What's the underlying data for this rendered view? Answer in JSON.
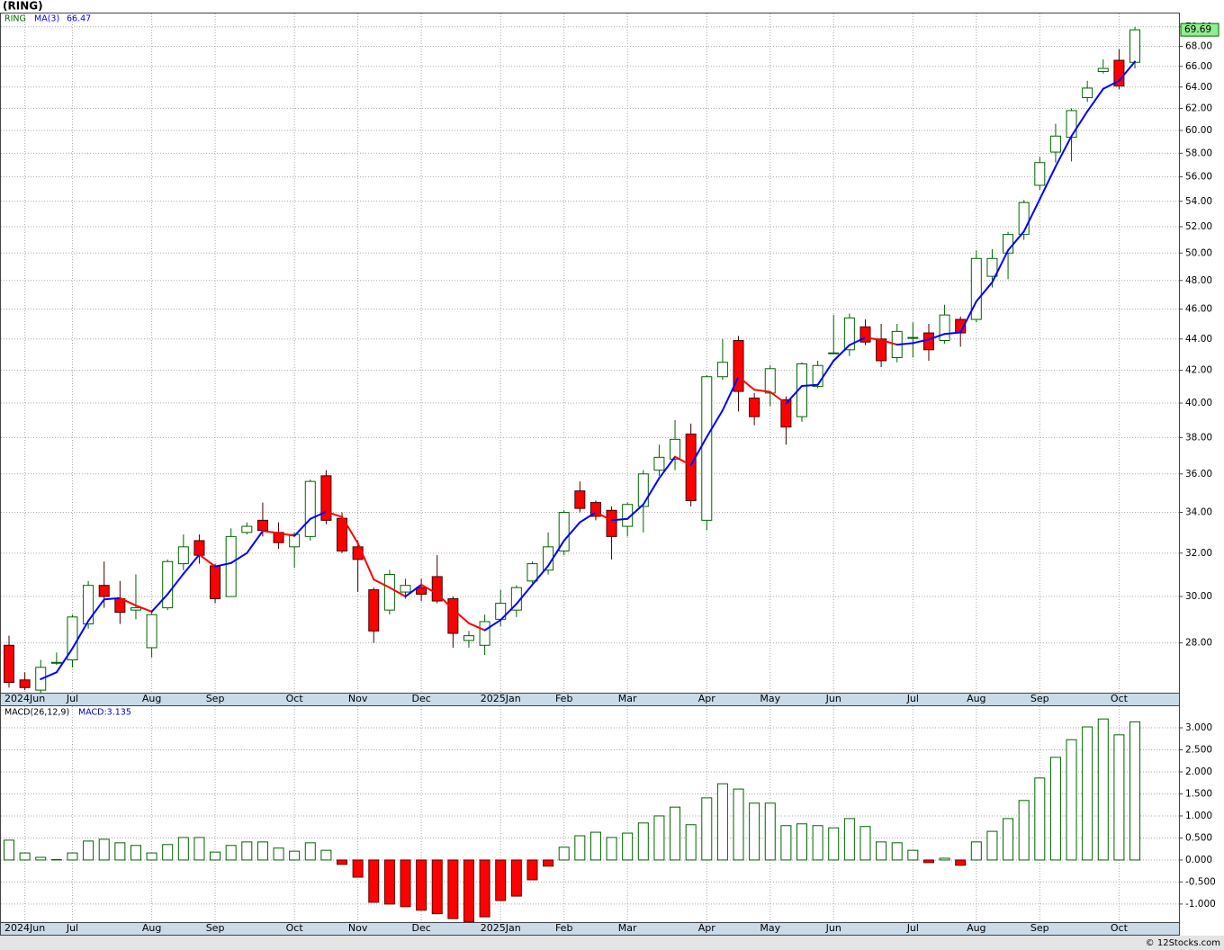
{
  "title": "(RING)",
  "watermark": "© 12Stocks.com",
  "chart_data": [
    {
      "type": "candlestick",
      "symbol": "RING",
      "categories": [
        null,
        "2024Jun",
        null,
        null,
        "Jul",
        null,
        null,
        null,
        null,
        "Aug",
        null,
        null,
        null,
        "Sep",
        null,
        null,
        null,
        null,
        "Oct",
        null,
        null,
        null,
        "Nov",
        null,
        null,
        null,
        "Dec",
        null,
        null,
        null,
        null,
        "2025Jan",
        null,
        null,
        null,
        "Feb",
        null,
        null,
        null,
        "Mar",
        null,
        null,
        null,
        null,
        "Apr",
        null,
        null,
        null,
        "May",
        null,
        null,
        null,
        "Jun",
        null,
        null,
        null,
        null,
        "Jul",
        null,
        null,
        null,
        "Aug",
        null,
        null,
        null,
        "Sep",
        null,
        null,
        null,
        null,
        "Oct",
        null
      ],
      "open": [
        27.9,
        26.5,
        26.1,
        27.2,
        27.3,
        28.8,
        30.5,
        29.9,
        29.4,
        27.8,
        29.5,
        31.5,
        32.6,
        31.4,
        30.0,
        33.0,
        33.6,
        33.0,
        32.3,
        32.8,
        35.9,
        33.7,
        32.3,
        30.3,
        29.4,
        30.2,
        30.4,
        30.9,
        29.9,
        28.1,
        27.9,
        29.0,
        29.4,
        30.7,
        31.2,
        32.1,
        35.1,
        34.5,
        34.1,
        33.3,
        34.3,
        36.2,
        36.8,
        38.2,
        33.6,
        41.6,
        43.9,
        40.3,
        40.6,
        40.2,
        39.2,
        41.0,
        43.1,
        43.3,
        44.8,
        44.0,
        42.8,
        44.1,
        44.4,
        43.9,
        45.3,
        45.3,
        48.3,
        50.0,
        51.4,
        55.3,
        58.1,
        59.4,
        63.0,
        65.5,
        66.6,
        66.4
      ],
      "high": [
        28.3,
        26.8,
        27.3,
        27.6,
        29.2,
        30.7,
        31.6,
        30.7,
        31.0,
        29.4,
        31.7,
        32.9,
        32.9,
        31.5,
        33.2,
        33.5,
        34.5,
        33.5,
        33.0,
        35.7,
        36.2,
        34.0,
        32.6,
        30.4,
        31.2,
        30.8,
        30.8,
        31.9,
        30.0,
        28.5,
        29.2,
        30.3,
        30.5,
        31.6,
        33.0,
        34.1,
        35.6,
        34.6,
        34.3,
        34.5,
        36.2,
        37.6,
        39.0,
        38.8,
        41.7,
        44.0,
        44.2,
        40.6,
        42.3,
        40.4,
        42.5,
        42.6,
        45.6,
        45.7,
        45.3,
        45.0,
        45.0,
        45.1,
        45.0,
        46.3,
        45.5,
        50.2,
        50.3,
        51.6,
        54.1,
        57.7,
        60.6,
        62.0,
        64.6,
        66.7,
        67.7,
        70.0
      ],
      "low": [
        26.2,
        26.1,
        26.0,
        27.1,
        27.0,
        28.6,
        29.5,
        28.8,
        29.0,
        27.4,
        29.4,
        31.2,
        31.5,
        29.7,
        30.0,
        32.9,
        32.8,
        32.2,
        31.3,
        32.6,
        33.4,
        32.0,
        30.2,
        28.0,
        29.2,
        29.9,
        29.8,
        29.7,
        27.8,
        27.8,
        27.5,
        28.7,
        29.1,
        30.6,
        31.0,
        31.9,
        34.0,
        33.6,
        31.7,
        32.8,
        33.0,
        35.9,
        36.2,
        34.3,
        33.1,
        41.4,
        39.5,
        38.7,
        39.8,
        37.6,
        38.9,
        40.9,
        43.0,
        42.9,
        43.6,
        42.2,
        42.5,
        42.8,
        42.6,
        43.7,
        43.5,
        45.1,
        47.5,
        48.1,
        51.0,
        54.9,
        57.2,
        57.3,
        62.6,
        65.3,
        63.8,
        65.8
      ],
      "close": [
        26.4,
        26.2,
        27.0,
        27.2,
        29.1,
        30.5,
        30.0,
        29.3,
        29.5,
        29.2,
        31.6,
        32.3,
        31.9,
        29.9,
        32.8,
        33.3,
        33.1,
        32.5,
        32.9,
        35.6,
        33.6,
        32.1,
        31.7,
        28.5,
        31.0,
        30.5,
        30.1,
        29.8,
        28.4,
        28.3,
        28.9,
        29.7,
        30.4,
        31.5,
        32.3,
        34.0,
        34.2,
        33.8,
        32.8,
        34.4,
        36.0,
        36.9,
        37.9,
        34.6,
        41.6,
        42.5,
        40.7,
        39.2,
        42.1,
        38.6,
        42.4,
        42.3,
        43.1,
        45.4,
        43.8,
        42.6,
        44.5,
        44.1,
        43.3,
        45.6,
        44.4,
        49.6,
        49.6,
        51.4,
        53.9,
        57.2,
        59.5,
        61.8,
        63.9,
        65.8,
        64.1,
        69.69
      ],
      "ma": {
        "name": "MA(3)",
        "color": "#0000ff",
        "down_color": "#ff0000",
        "values": [
          null,
          null,
          26.53,
          26.8,
          27.77,
          28.93,
          29.87,
          29.93,
          29.6,
          29.33,
          30.1,
          31.03,
          31.93,
          31.37,
          31.53,
          32.0,
          33.07,
          32.97,
          32.83,
          33.67,
          34.03,
          33.77,
          32.47,
          30.77,
          30.4,
          30.0,
          30.53,
          30.13,
          29.43,
          28.83,
          28.53,
          28.97,
          29.67,
          30.53,
          31.4,
          32.6,
          33.5,
          34.0,
          33.6,
          33.67,
          34.4,
          35.77,
          36.93,
          36.47,
          38.03,
          39.57,
          41.6,
          40.8,
          40.67,
          39.97,
          41.03,
          41.1,
          42.6,
          43.6,
          44.1,
          43.93,
          43.63,
          43.73,
          43.97,
          44.33,
          44.43,
          46.53,
          47.87,
          50.2,
          51.63,
          54.17,
          56.87,
          59.5,
          61.73,
          63.83,
          64.6,
          66.47
        ]
      },
      "ylim": [
        26,
        71.4
      ],
      "log_scale": true,
      "yticks": [
        {
          "value": 28,
          "label": "28.00"
        },
        {
          "value": 30,
          "label": "30.00"
        },
        {
          "value": 32,
          "label": "32.00"
        },
        {
          "value": 34,
          "label": "34.00"
        },
        {
          "value": 36,
          "label": "36.00"
        },
        {
          "value": 38,
          "label": "38.00"
        },
        {
          "value": 40,
          "label": "40.00"
        },
        {
          "value": 42,
          "label": "42.00"
        },
        {
          "value": 44,
          "label": "44.00"
        },
        {
          "value": 46,
          "label": "46.00"
        },
        {
          "value": 48,
          "label": "48.00"
        },
        {
          "value": 50,
          "label": "50.00"
        },
        {
          "value": 52,
          "label": "52.00"
        },
        {
          "value": 54,
          "label": "54.00"
        },
        {
          "value": 56,
          "label": "56.00"
        },
        {
          "value": 58,
          "label": "58.00"
        },
        {
          "value": 60,
          "label": "60.00"
        },
        {
          "value": 62,
          "label": "62.00"
        },
        {
          "value": 64,
          "label": "64.00"
        },
        {
          "value": 66,
          "label": "66.00"
        },
        {
          "value": 68,
          "label": "68.00"
        },
        {
          "value": 70,
          "label": "70.00"
        }
      ],
      "grid": true,
      "up_fill": "#ffffff",
      "up_stroke": "#006400",
      "down_fill": "#ff0000",
      "down_stroke": "#400000",
      "symbol_color": "#006400",
      "last_price_color": "#90ee90"
    },
    {
      "type": "bar",
      "name": "MACD(26,12,9)",
      "legend_label": "MACD:3.135",
      "values": [
        0.45,
        0.16,
        0.06,
        0.01,
        0.16,
        0.43,
        0.47,
        0.39,
        0.33,
        0.16,
        0.35,
        0.51,
        0.51,
        0.18,
        0.33,
        0.41,
        0.41,
        0.27,
        0.2,
        0.39,
        0.22,
        -0.1,
        -0.39,
        -0.96,
        -1.0,
        -1.06,
        -1.14,
        -1.22,
        -1.33,
        -1.4,
        -1.29,
        -0.92,
        -0.82,
        -0.45,
        -0.14,
        0.29,
        0.55,
        0.63,
        0.51,
        0.61,
        0.84,
        1.0,
        1.2,
        0.8,
        1.41,
        1.73,
        1.61,
        1.29,
        1.29,
        0.78,
        0.82,
        0.78,
        0.73,
        0.94,
        0.76,
        0.41,
        0.39,
        0.22,
        -0.06,
        0.04,
        -0.12,
        0.41,
        0.65,
        0.94,
        1.35,
        1.86,
        2.33,
        2.73,
        3.02,
        3.2,
        2.84,
        3.135
      ],
      "ylim": [
        -1.41,
        3.49
      ],
      "yticks": [
        {
          "value": 3,
          "label": "3.000"
        },
        {
          "value": 2.5,
          "label": "2.500"
        },
        {
          "value": 2,
          "label": "2.000"
        },
        {
          "value": 1.5,
          "label": "1.500"
        },
        {
          "value": 1,
          "label": "1.000"
        },
        {
          "value": 0.5,
          "label": "0.500"
        },
        {
          "value": 0,
          "label": "0.000"
        },
        {
          "value": -0.5,
          "label": "-0.500"
        },
        {
          "value": -1,
          "label": "-1.000"
        }
      ],
      "grid": true,
      "up_fill": "#ffffff",
      "up_stroke": "#006400",
      "down_fill": "#ff0000",
      "down_stroke": "#600000",
      "legend_color": "#0000cc"
    }
  ]
}
